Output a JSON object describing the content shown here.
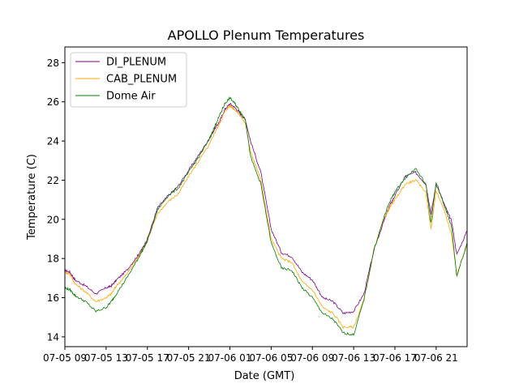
{
  "chart_data": {
    "type": "line",
    "title": "APOLLO Plenum Temperatures",
    "xlabel": "Date (GMT)",
    "ylabel": "Temperature (C)",
    "xlim": [
      0,
      39
    ],
    "ylim": [
      13.5,
      28.8
    ],
    "x_tick_values": [
      0,
      4,
      8,
      12,
      16,
      20,
      24,
      28,
      32,
      36
    ],
    "x_tick_labels": [
      "07-05 09",
      "07-05 13",
      "07-05 17",
      "07-05 21",
      "07-06 01",
      "07-06 05",
      "07-06 09",
      "07-06 13",
      "07-06 17",
      "07-06 21"
    ],
    "y_ticks": [
      14,
      16,
      18,
      20,
      22,
      24,
      26,
      28
    ],
    "legend_position": "top-left",
    "x": [
      0,
      0.5,
      1,
      2,
      3,
      4,
      4.5,
      5,
      6,
      7,
      7.5,
      8,
      9,
      10,
      11,
      12,
      13,
      14,
      14.5,
      15,
      15.5,
      16,
      16.5,
      17,
      17.5,
      18,
      19,
      20,
      21,
      22,
      23,
      24,
      25,
      26,
      27,
      28,
      29,
      30,
      31,
      31.5,
      32,
      33,
      34,
      35,
      35.5,
      36,
      37,
      37.5,
      38,
      39
    ],
    "series": [
      {
        "name": "DI_PLENUM",
        "color": "#800080",
        "values": [
          17.4,
          17.3,
          16.9,
          16.6,
          16.2,
          16.5,
          16.6,
          16.9,
          17.4,
          18.1,
          18.5,
          19.0,
          20.6,
          21.2,
          21.7,
          22.5,
          23.3,
          24.1,
          24.6,
          25.0,
          25.6,
          25.9,
          25.7,
          25.4,
          25.1,
          24.0,
          22.4,
          19.5,
          18.3,
          18.1,
          17.3,
          16.9,
          16.0,
          15.8,
          15.2,
          15.3,
          16.2,
          18.5,
          20.0,
          20.7,
          21.2,
          22.2,
          22.4,
          21.8,
          20.3,
          21.8,
          20.5,
          19.9,
          18.2,
          19.4
        ]
      },
      {
        "name": "CAB_PLENUM",
        "color": "#ffa500",
        "values": [
          17.3,
          17.2,
          16.7,
          16.3,
          15.8,
          16.0,
          16.2,
          16.6,
          17.2,
          18.0,
          18.4,
          18.9,
          20.3,
          20.9,
          21.3,
          22.2,
          23.0,
          23.8,
          24.4,
          24.9,
          25.5,
          25.8,
          25.6,
          25.3,
          24.9,
          23.5,
          22.0,
          19.0,
          18.0,
          17.8,
          16.8,
          16.4,
          15.5,
          15.2,
          14.5,
          14.5,
          15.9,
          18.5,
          20.1,
          20.6,
          21.0,
          21.8,
          22.0,
          21.4,
          19.5,
          21.5,
          20.1,
          19.2,
          17.2,
          18.7
        ]
      },
      {
        "name": "Dome Air",
        "color": "#008000",
        "values": [
          16.5,
          16.4,
          16.1,
          15.8,
          15.3,
          15.5,
          15.8,
          16.2,
          17.0,
          17.9,
          18.4,
          18.9,
          20.5,
          21.2,
          21.6,
          22.4,
          23.2,
          24.1,
          24.7,
          25.3,
          25.9,
          26.2,
          25.9,
          25.5,
          25.1,
          23.2,
          21.8,
          18.8,
          17.5,
          17.4,
          16.5,
          16.0,
          15.2,
          14.9,
          14.2,
          14.1,
          15.9,
          18.5,
          20.2,
          20.9,
          21.4,
          22.1,
          22.6,
          21.8,
          19.8,
          21.9,
          20.4,
          19.6,
          17.1,
          18.8
        ]
      }
    ]
  }
}
